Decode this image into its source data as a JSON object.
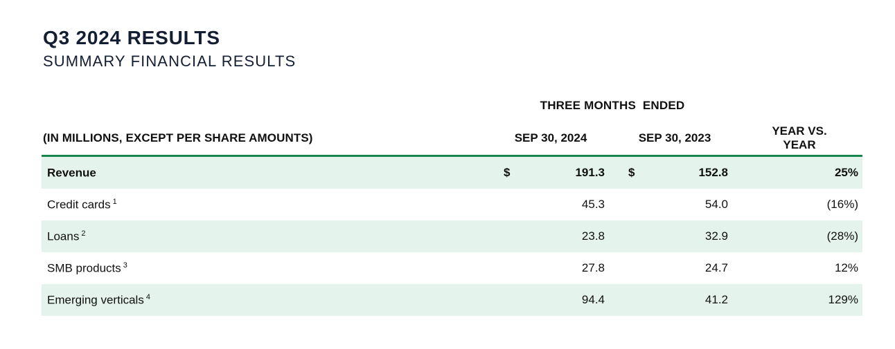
{
  "page": {
    "title": "Q3 2024 RESULTS",
    "subtitle": "SUMMARY FINANCIAL RESULTS"
  },
  "table": {
    "group_header": "THREE MONTHS  ENDED",
    "row_label_header": "(IN MILLIONS, EXCEPT PER SHARE AMOUNTS)",
    "col_2024_header": "SEP 30, 2024",
    "col_2023_header": "SEP 30, 2023",
    "yoy_header_line1": "YEAR VS.",
    "yoy_header_line2": "YEAR",
    "rows": [
      {
        "label": "Revenue",
        "footnote": "",
        "currency": "$",
        "val_2024": "191.3",
        "val_2023": "152.8",
        "yoy": "25%"
      },
      {
        "label": "Credit cards",
        "footnote": "1",
        "currency": "",
        "val_2024": "45.3",
        "val_2023": "54.0",
        "yoy": "(16%)"
      },
      {
        "label": "Loans",
        "footnote": "2",
        "currency": "",
        "val_2024": "23.8",
        "val_2023": "32.9",
        "yoy": "(28%)"
      },
      {
        "label": "SMB products",
        "footnote": "3",
        "currency": "",
        "val_2024": "27.8",
        "val_2023": "24.7",
        "yoy": "12%"
      },
      {
        "label": "Emerging verticals",
        "footnote": "4",
        "currency": "",
        "val_2024": "94.4",
        "val_2023": "41.2",
        "yoy": "129%"
      }
    ]
  },
  "colors": {
    "accent_green": "#17854e",
    "row_mint": "#e4f4ec",
    "title_navy": "#141e33"
  }
}
